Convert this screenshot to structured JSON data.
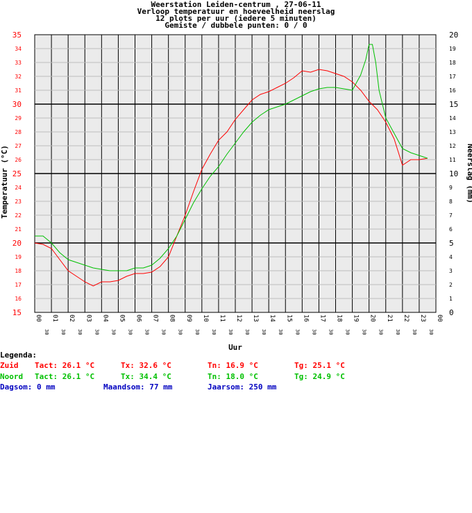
{
  "chart_data": {
    "type": "line",
    "title_lines": [
      "Weerstation Leiden-centrum , 27-06-11",
      "Verloop temperatuur en hoeveelheid neerslag",
      "12 plots per uur (iedere 5 minuten)",
      "Gemiste / dubbele punten: 0 / 0"
    ],
    "xlabel": "Uur",
    "ylabel_left": "Temperatuur (°C)",
    "ylabel_right": "Neerslag (mm)",
    "ylim_left": [
      15,
      35
    ],
    "ylim_right": [
      0,
      20
    ],
    "xlim": [
      0,
      24
    ],
    "hour_ticks": [
      "00",
      "01",
      "02",
      "03",
      "04",
      "05",
      "06",
      "07",
      "08",
      "09",
      "10",
      "11",
      "12",
      "13",
      "14",
      "15",
      "16",
      "17",
      "18",
      "19",
      "20",
      "21",
      "22",
      "23",
      "00"
    ],
    "half_tick_label": "30",
    "left_ticks": [
      "15",
      "16",
      "17",
      "18",
      "19",
      "20",
      "21",
      "22",
      "23",
      "24",
      "25",
      "26",
      "27",
      "28",
      "29",
      "30",
      "31",
      "32",
      "33",
      "34",
      "35"
    ],
    "right_ticks": [
      "0",
      "1",
      "2",
      "3",
      "4",
      "5",
      "6",
      "7",
      "8",
      "9",
      "10",
      "11",
      "12",
      "13",
      "14",
      "15",
      "16",
      "17",
      "18",
      "19",
      "20"
    ],
    "grid": true,
    "series": [
      {
        "name": "Zuid",
        "color": "#ff0000",
        "x": [
          0,
          0.5,
          1,
          1.5,
          2,
          2.5,
          3,
          3.5,
          4,
          4.5,
          5,
          5.5,
          6,
          6.5,
          7,
          7.5,
          8,
          8.5,
          9,
          9.5,
          10,
          10.5,
          11,
          11.5,
          12,
          12.5,
          13,
          13.5,
          14,
          14.5,
          15,
          15.5,
          16,
          16.5,
          17,
          17.5,
          18,
          18.5,
          19,
          19.5,
          20,
          20.5,
          21,
          21.5,
          22,
          22.5,
          23,
          23.5
        ],
        "values": [
          20.0,
          19.9,
          19.6,
          18.8,
          18.0,
          17.6,
          17.2,
          16.9,
          17.2,
          17.2,
          17.3,
          17.6,
          17.8,
          17.8,
          17.9,
          18.3,
          19.0,
          20.5,
          22.0,
          23.7,
          25.3,
          26.4,
          27.4,
          28.0,
          28.9,
          29.6,
          30.3,
          30.7,
          30.9,
          31.2,
          31.5,
          31.9,
          32.4,
          32.3,
          32.5,
          32.4,
          32.2,
          32.0,
          31.6,
          31.0,
          30.2,
          29.6,
          28.7,
          27.5,
          25.6,
          26.0,
          26.0,
          26.1
        ]
      },
      {
        "name": "Noord",
        "color": "#00c000",
        "x": [
          0,
          0.5,
          1,
          1.5,
          2,
          2.5,
          3,
          3.5,
          4,
          4.5,
          5,
          5.5,
          6,
          6.5,
          7,
          7.5,
          8,
          8.5,
          9,
          9.5,
          10,
          10.5,
          11,
          11.5,
          12,
          12.5,
          13,
          13.5,
          14,
          14.5,
          15,
          15.5,
          16,
          16.5,
          17,
          17.5,
          18,
          18.5,
          19,
          19.5,
          19.8,
          20,
          20.2,
          20.4,
          20.6,
          21,
          21.5,
          22,
          22.5,
          23,
          23.5
        ],
        "values": [
          20.5,
          20.5,
          20.0,
          19.3,
          18.8,
          18.6,
          18.4,
          18.2,
          18.1,
          18.0,
          18.0,
          18.0,
          18.2,
          18.2,
          18.4,
          18.9,
          19.6,
          20.5,
          21.7,
          22.9,
          23.9,
          24.8,
          25.5,
          26.4,
          27.2,
          28.0,
          28.7,
          29.2,
          29.6,
          29.8,
          30.0,
          30.3,
          30.6,
          30.9,
          31.1,
          31.2,
          31.2,
          31.1,
          31.0,
          32.1,
          33.2,
          34.3,
          34.3,
          33.0,
          31.0,
          29.0,
          27.9,
          26.8,
          26.5,
          26.3,
          26.1
        ]
      }
    ]
  },
  "legend": {
    "title": "Legenda:",
    "rows": [
      {
        "name": "Zuid",
        "tact": "Tact: 26.1 °C",
        "tx": "Tx: 32.6 °C",
        "tn": "Tn: 16.9 °C",
        "tg": "Tg: 25.1 °C",
        "color": "#ff0000"
      },
      {
        "name": "Noord",
        "tact": "Tact: 26.1 °C",
        "tx": "Tx: 34.4 °C",
        "tn": "Tn: 18.0 °C",
        "tg": "Tg: 24.9 °C",
        "color": "#00c000"
      }
    ],
    "rain": {
      "dagsom": "Dagsom: 0 mm",
      "maandsom": "Maandsom: 77 mm",
      "jaarsom": "Jaarsom: 250 mm",
      "color": "#0000c0"
    }
  }
}
